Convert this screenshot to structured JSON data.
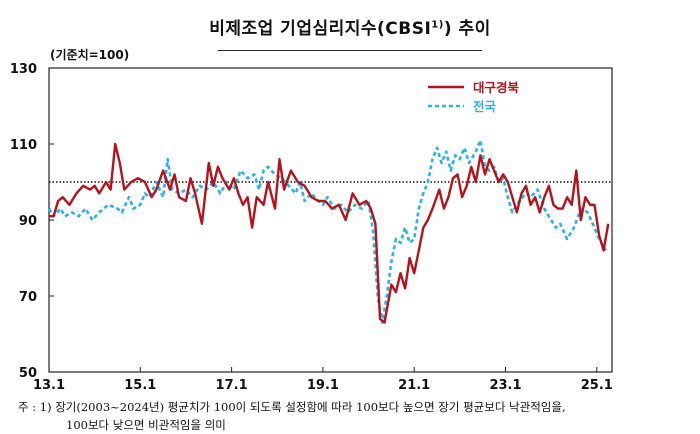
{
  "title": "비제조업 기업심리지수(CBSI",
  "title_sup": "1)",
  "title_end": ") 추이",
  "unit_label": "(기준치=100)",
  "note": {
    "line1": "주 : 1) 장기(2003~2024년) 평균치가 100이 되도록 설정함에 따라 100보다 높으면 장기 평균보다 낙관적임을,",
    "line2": "100보다 낮으면 비관적임을 의미"
  },
  "colors": {
    "daegu": "#b5121b",
    "national": "#29b3e6",
    "reference": "#111111"
  },
  "chart_data": {
    "type": "line",
    "x_range": [
      2013.0,
      2025.333
    ],
    "ylim": [
      50,
      130
    ],
    "yticks": [
      50,
      70,
      90,
      110,
      130
    ],
    "xticks": [
      {
        "label": "13.1",
        "x": 2013.0
      },
      {
        "label": "15.1",
        "x": 2015.0
      },
      {
        "label": "17.1",
        "x": 2017.0
      },
      {
        "label": "19.1",
        "x": 2019.0
      },
      {
        "label": "21.1",
        "x": 2021.0
      },
      {
        "label": "23.1",
        "x": 2023.0
      },
      {
        "label": "25.1",
        "x": 2025.0
      }
    ],
    "reference_line": 100,
    "legend": [
      {
        "name": "대구경북",
        "style": "solid",
        "color": "#b5121b"
      },
      {
        "name": "전국",
        "style": "dashed",
        "color": "#29b3e6"
      }
    ],
    "series": [
      {
        "name": "대구경북",
        "points": [
          [
            2013.0,
            91
          ],
          [
            2013.1,
            91
          ],
          [
            2013.2,
            95
          ],
          [
            2013.3,
            96
          ],
          [
            2013.45,
            94
          ],
          [
            2013.6,
            97
          ],
          [
            2013.75,
            99
          ],
          [
            2013.9,
            98
          ],
          [
            2014.0,
            99
          ],
          [
            2014.1,
            97
          ],
          [
            2014.25,
            100
          ],
          [
            2014.35,
            98
          ],
          [
            2014.45,
            110
          ],
          [
            2014.55,
            105
          ],
          [
            2014.65,
            98
          ],
          [
            2014.8,
            100
          ],
          [
            2014.95,
            101
          ],
          [
            2015.1,
            100
          ],
          [
            2015.25,
            96
          ],
          [
            2015.35,
            98
          ],
          [
            2015.5,
            103
          ],
          [
            2015.65,
            98
          ],
          [
            2015.75,
            102
          ],
          [
            2015.85,
            96
          ],
          [
            2016.0,
            95
          ],
          [
            2016.1,
            101
          ],
          [
            2016.2,
            97
          ],
          [
            2016.35,
            89
          ],
          [
            2016.5,
            105
          ],
          [
            2016.6,
            99
          ],
          [
            2016.7,
            104
          ],
          [
            2016.8,
            101
          ],
          [
            2016.95,
            98
          ],
          [
            2017.05,
            101
          ],
          [
            2017.15,
            97
          ],
          [
            2017.25,
            94
          ],
          [
            2017.35,
            96
          ],
          [
            2017.45,
            88
          ],
          [
            2017.55,
            96
          ],
          [
            2017.7,
            94
          ],
          [
            2017.8,
            100
          ],
          [
            2017.95,
            93
          ],
          [
            2018.05,
            106
          ],
          [
            2018.15,
            98
          ],
          [
            2018.3,
            103
          ],
          [
            2018.45,
            100
          ],
          [
            2018.6,
            99
          ],
          [
            2018.75,
            96
          ],
          [
            2018.9,
            95
          ],
          [
            2019.05,
            95
          ],
          [
            2019.2,
            93
          ],
          [
            2019.35,
            94
          ],
          [
            2019.5,
            90
          ],
          [
            2019.65,
            97
          ],
          [
            2019.8,
            94
          ],
          [
            2019.95,
            95
          ],
          [
            2020.05,
            93
          ],
          [
            2020.15,
            89
          ],
          [
            2020.25,
            64
          ],
          [
            2020.35,
            63
          ],
          [
            2020.5,
            73
          ],
          [
            2020.6,
            71
          ],
          [
            2020.7,
            76
          ],
          [
            2020.8,
            72
          ],
          [
            2020.9,
            80
          ],
          [
            2021.0,
            76
          ],
          [
            2021.1,
            82
          ],
          [
            2021.2,
            88
          ],
          [
            2021.3,
            90
          ],
          [
            2021.4,
            93
          ],
          [
            2021.55,
            98
          ],
          [
            2021.65,
            93
          ],
          [
            2021.75,
            96
          ],
          [
            2021.85,
            101
          ],
          [
            2021.95,
            102
          ],
          [
            2022.05,
            96
          ],
          [
            2022.15,
            99
          ],
          [
            2022.25,
            104
          ],
          [
            2022.35,
            100
          ],
          [
            2022.45,
            107
          ],
          [
            2022.55,
            102
          ],
          [
            2022.65,
            106
          ],
          [
            2022.75,
            103
          ],
          [
            2022.85,
            100
          ],
          [
            2022.95,
            102
          ],
          [
            2023.05,
            100
          ],
          [
            2023.15,
            96
          ],
          [
            2023.25,
            92
          ],
          [
            2023.35,
            97
          ],
          [
            2023.45,
            99
          ],
          [
            2023.55,
            94
          ],
          [
            2023.65,
            96
          ],
          [
            2023.75,
            92
          ],
          [
            2023.85,
            96
          ],
          [
            2023.95,
            99
          ],
          [
            2024.05,
            94
          ],
          [
            2024.15,
            93
          ],
          [
            2024.25,
            93
          ],
          [
            2024.35,
            96
          ],
          [
            2024.45,
            94
          ],
          [
            2024.55,
            103
          ],
          [
            2024.65,
            90
          ],
          [
            2024.75,
            96
          ],
          [
            2024.85,
            94
          ],
          [
            2024.95,
            94
          ],
          [
            2025.05,
            86
          ],
          [
            2025.15,
            82
          ],
          [
            2025.25,
            89
          ]
        ]
      },
      {
        "name": "전국",
        "points": [
          [
            2013.0,
            93
          ],
          [
            2013.1,
            91
          ],
          [
            2013.25,
            93
          ],
          [
            2013.35,
            91
          ],
          [
            2013.5,
            92
          ],
          [
            2013.65,
            91
          ],
          [
            2013.8,
            93
          ],
          [
            2013.95,
            90
          ],
          [
            2014.1,
            92
          ],
          [
            2014.3,
            94
          ],
          [
            2014.5,
            93
          ],
          [
            2014.6,
            92
          ],
          [
            2014.75,
            96
          ],
          [
            2014.85,
            93
          ],
          [
            2015.0,
            94
          ],
          [
            2015.1,
            97
          ],
          [
            2015.2,
            96
          ],
          [
            2015.35,
            100
          ],
          [
            2015.5,
            96
          ],
          [
            2015.6,
            106
          ],
          [
            2015.7,
            98
          ],
          [
            2015.85,
            97
          ],
          [
            2016.0,
            98
          ],
          [
            2016.15,
            96
          ],
          [
            2016.3,
            99
          ],
          [
            2016.45,
            98
          ],
          [
            2016.6,
            100
          ],
          [
            2016.75,
            97
          ],
          [
            2016.9,
            100
          ],
          [
            2017.05,
            98
          ],
          [
            2017.2,
            103
          ],
          [
            2017.35,
            101
          ],
          [
            2017.5,
            102
          ],
          [
            2017.6,
            98
          ],
          [
            2017.7,
            103
          ],
          [
            2017.8,
            104
          ],
          [
            2017.95,
            102
          ],
          [
            2018.1,
            101
          ],
          [
            2018.25,
            99
          ],
          [
            2018.4,
            97
          ],
          [
            2018.5,
            100
          ],
          [
            2018.6,
            95
          ],
          [
            2018.75,
            97
          ],
          [
            2018.9,
            95
          ],
          [
            2019.0,
            94
          ],
          [
            2019.1,
            96
          ],
          [
            2019.25,
            93
          ],
          [
            2019.4,
            94
          ],
          [
            2019.55,
            92
          ],
          [
            2019.7,
            94
          ],
          [
            2019.85,
            93
          ],
          [
            2020.0,
            95
          ],
          [
            2020.1,
            87
          ],
          [
            2020.2,
            70
          ],
          [
            2020.3,
            63
          ],
          [
            2020.4,
            70
          ],
          [
            2020.5,
            79
          ],
          [
            2020.6,
            85
          ],
          [
            2020.7,
            84
          ],
          [
            2020.8,
            88
          ],
          [
            2020.9,
            84
          ],
          [
            2021.0,
            85
          ],
          [
            2021.1,
            93
          ],
          [
            2021.2,
            97
          ],
          [
            2021.3,
            100
          ],
          [
            2021.4,
            106
          ],
          [
            2021.5,
            109
          ],
          [
            2021.6,
            105
          ],
          [
            2021.7,
            108
          ],
          [
            2021.8,
            103
          ],
          [
            2021.9,
            107
          ],
          [
            2022.0,
            106
          ],
          [
            2022.1,
            109
          ],
          [
            2022.2,
            105
          ],
          [
            2022.35,
            108
          ],
          [
            2022.45,
            111
          ],
          [
            2022.55,
            104
          ],
          [
            2022.65,
            103
          ],
          [
            2022.75,
            104
          ],
          [
            2022.85,
            100
          ],
          [
            2022.95,
            101
          ],
          [
            2023.05,
            96
          ],
          [
            2023.15,
            92
          ],
          [
            2023.3,
            95
          ],
          [
            2023.45,
            97
          ],
          [
            2023.55,
            96
          ],
          [
            2023.7,
            98
          ],
          [
            2023.85,
            93
          ],
          [
            2024.0,
            90
          ],
          [
            2024.1,
            88
          ],
          [
            2024.2,
            89
          ],
          [
            2024.35,
            85
          ],
          [
            2024.5,
            88
          ],
          [
            2024.65,
            93
          ],
          [
            2024.8,
            92
          ],
          [
            2024.95,
            88
          ],
          [
            2025.05,
            85
          ],
          [
            2025.2,
            82
          ]
        ]
      }
    ]
  }
}
